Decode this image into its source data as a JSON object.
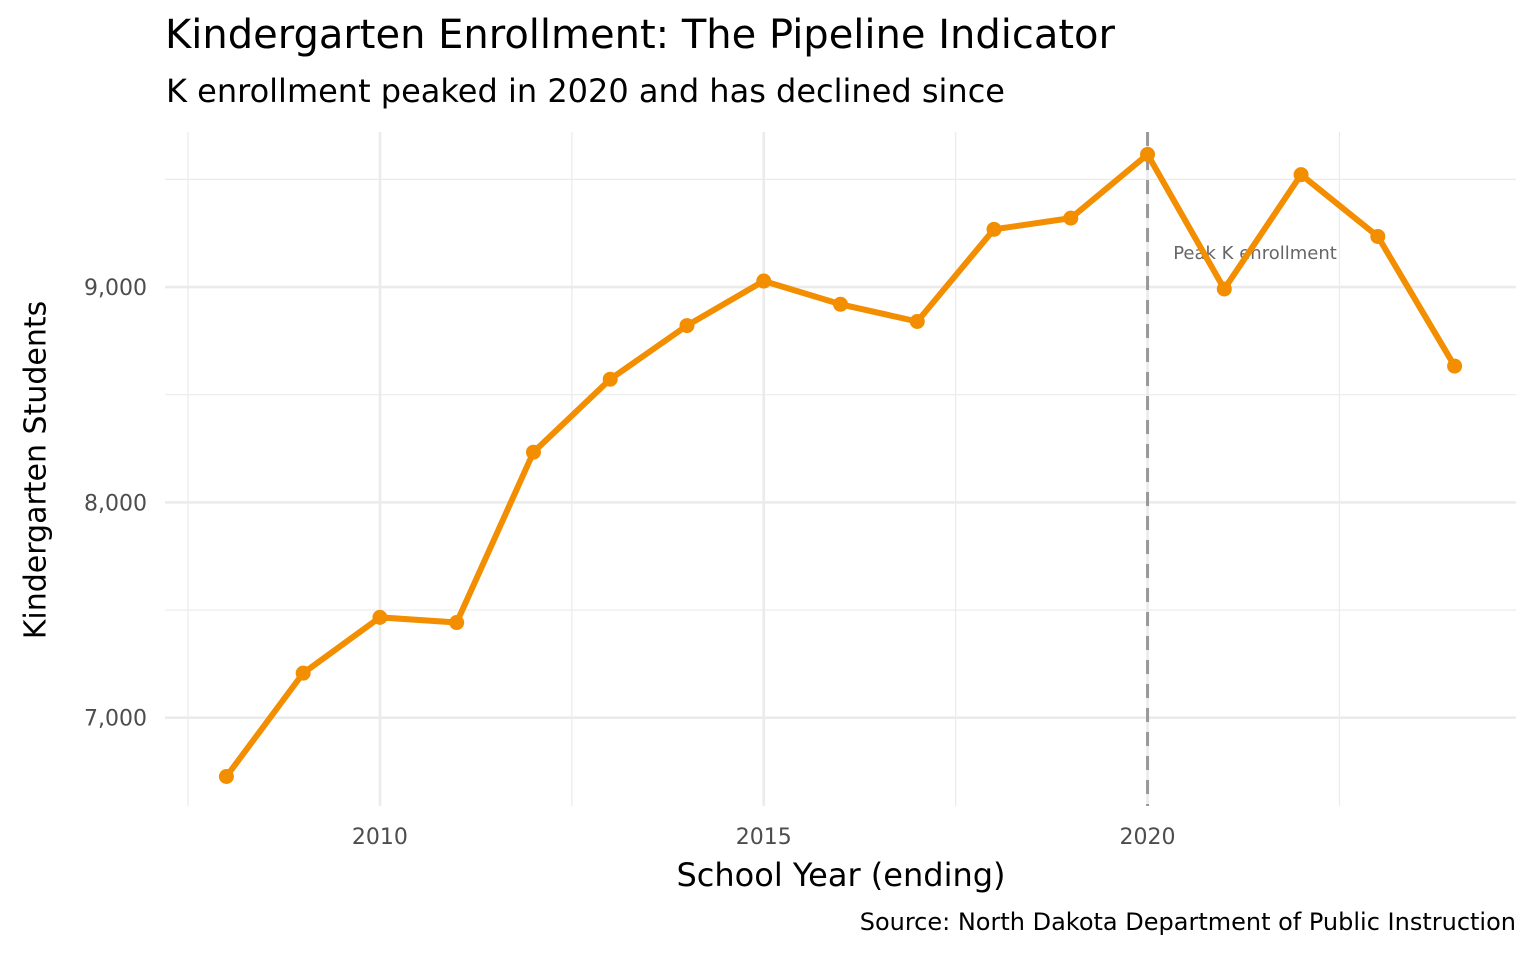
{
  "chart_data": {
    "type": "line",
    "title": "Kindergarten Enrollment: The Pipeline Indicator",
    "subtitle": "K enrollment peaked in 2020 and has declined since",
    "xlabel": "School Year (ending)",
    "ylabel": "Kindergarten Students",
    "caption": "Source: North Dakota Department of Public Instruction",
    "x": [
      2008,
      2009,
      2010,
      2011,
      2012,
      2013,
      2014,
      2015,
      2016,
      2017,
      2018,
      2019,
      2020,
      2021,
      2022,
      2023,
      2024
    ],
    "series": [
      {
        "name": "Kindergarten enrollment",
        "color": "#F28E00",
        "values": [
          6727,
          7207,
          7466,
          7442,
          8233,
          8572,
          8821,
          9028,
          8920,
          8840,
          9268,
          9320,
          9616,
          8991,
          9522,
          9235,
          8633
        ]
      }
    ],
    "xlim": [
      2007.2,
      2024.8
    ],
    "ylim": [
      6590,
      9720
    ],
    "x_ticks": [
      2010,
      2015,
      2020
    ],
    "x_tick_labels": [
      "2010",
      "2015",
      "2020"
    ],
    "x_minor_ticks": [
      2007.5,
      2012.5,
      2017.5,
      2022.5
    ],
    "y_ticks": [
      7000,
      8000,
      9000
    ],
    "y_tick_labels": [
      "7,000",
      "8,000",
      "9,000"
    ],
    "y_minor_ticks": [
      7500,
      8500,
      9500
    ],
    "grid": true,
    "legend": "none",
    "annotations": [
      {
        "type": "vline",
        "x": 2020,
        "style": "dashed",
        "color": "#999999"
      },
      {
        "type": "text",
        "x": 2021.4,
        "y": 9130,
        "text": "Peak K enrollment",
        "color": "#666666"
      }
    ]
  }
}
